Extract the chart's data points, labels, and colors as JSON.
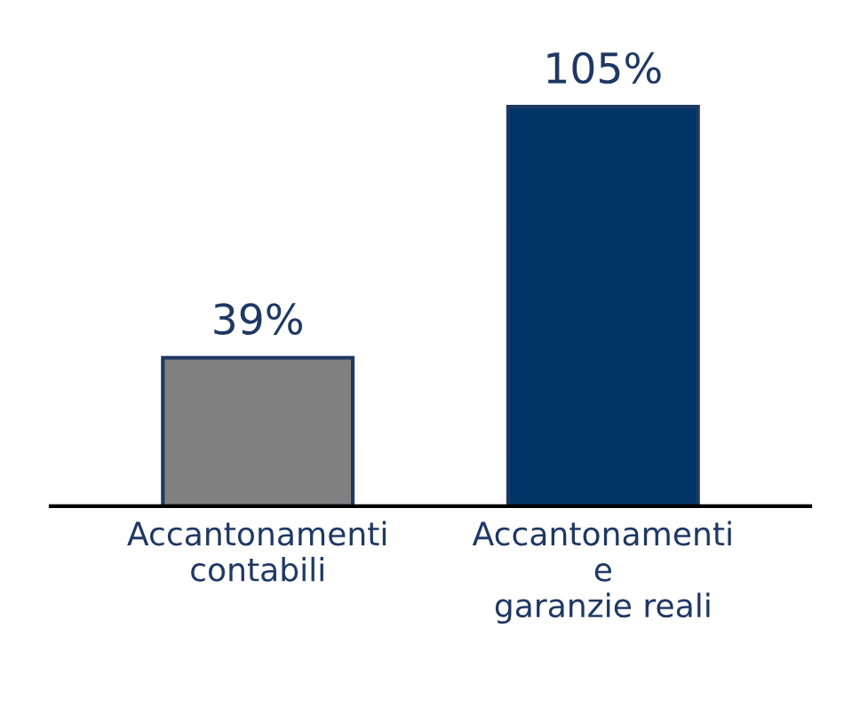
{
  "chart_data": {
    "type": "bar",
    "categories": [
      "Accantonamenti\ncontabili",
      "Accantonamenti\ne\ngaranzie reali"
    ],
    "values": [
      39,
      105
    ],
    "colors": [
      "#808080",
      "#003366"
    ],
    "value_labels": [
      "39%",
      "105%"
    ],
    "grid": false,
    "legend": false
  }
}
